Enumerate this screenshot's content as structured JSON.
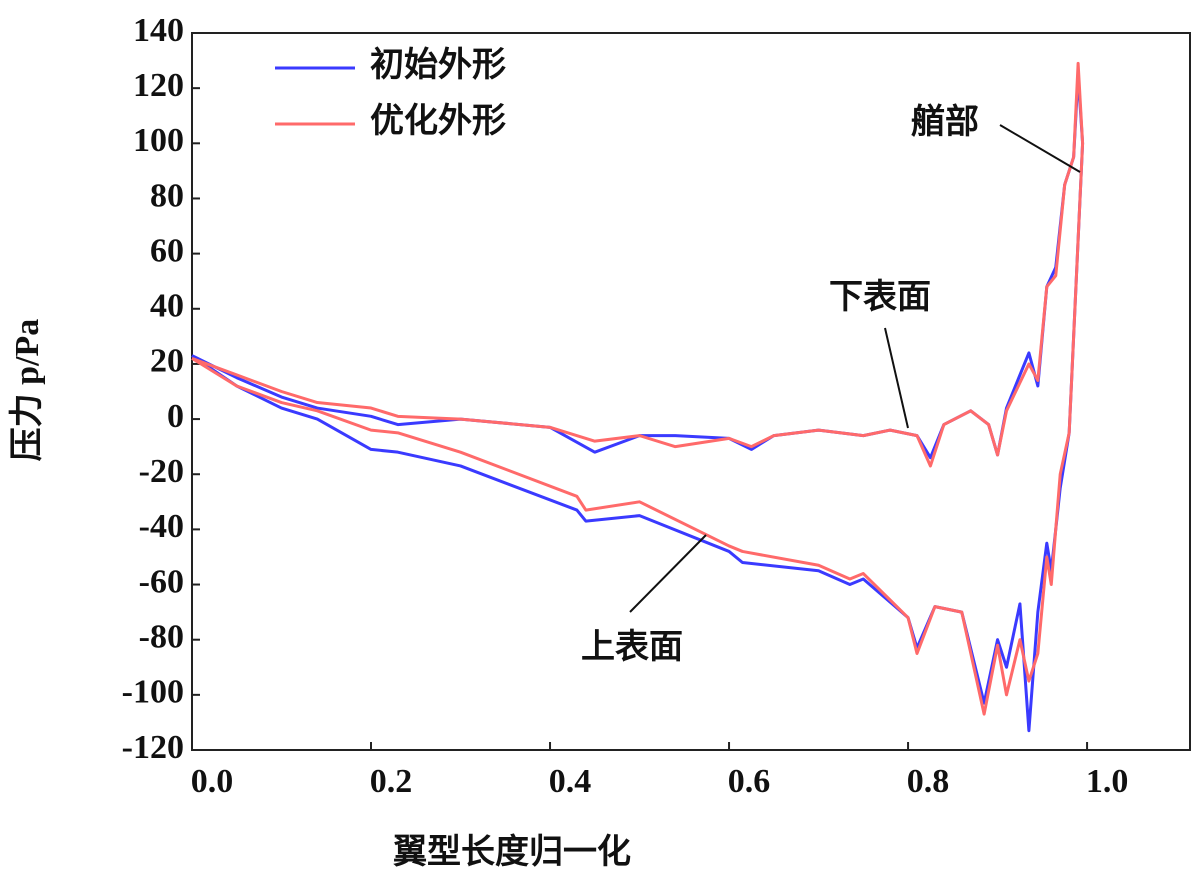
{
  "chart_data": {
    "type": "line",
    "xlabel": "翼型长度归一化",
    "ylabel": "压力 p/Pa",
    "x": [
      0,
      0.05,
      0.1,
      0.14,
      0.2,
      0.23,
      0.3,
      0.4,
      0.45,
      0.5,
      0.54,
      0.6,
      0.625,
      0.65,
      0.7,
      0.75,
      0.78,
      0.81,
      0.825,
      0.84,
      0.87,
      0.89,
      0.9,
      0.91,
      0.935,
      0.945,
      0.955,
      0.965,
      0.975,
      0.985,
      0.99,
      0.995,
      0.98,
      0.97,
      0.96,
      0.955,
      0.945,
      0.935,
      0.925,
      0.91,
      0.9,
      0.885,
      0.86,
      0.83,
      0.81,
      0.8,
      0.75,
      0.735,
      0.7,
      0.615,
      0.6,
      0.5,
      0.44,
      0.43,
      0.3,
      0.23,
      0.2,
      0.14,
      0.1,
      0.05,
      0
    ],
    "series": [
      {
        "name": "初始外形",
        "color": "#3a3aff",
        "values": [
          23,
          15,
          8,
          4,
          1,
          -2,
          0,
          -3,
          -12,
          -6,
          -6,
          -7,
          -11,
          -6,
          -4,
          -6,
          -4,
          -6,
          -14,
          -2,
          3,
          -2,
          -13,
          4,
          24,
          12,
          48,
          55,
          85,
          95,
          125,
          100,
          -5,
          -25,
          -55,
          -45,
          -70,
          -113,
          -67,
          -90,
          -80,
          -103,
          -70,
          -68,
          -83,
          -72,
          -58,
          -60,
          -55,
          -52,
          -48,
          -35,
          -37,
          -33,
          -17,
          -12,
          -11,
          0,
          4,
          12,
          23
        ]
      },
      {
        "name": "优化外形",
        "color": "#ff6a6a",
        "values": [
          22,
          16,
          10,
          6,
          4,
          1,
          0,
          -3,
          -8,
          -6,
          -10,
          -7,
          -10,
          -6,
          -4,
          -6,
          -4,
          -6,
          -17,
          -2,
          3,
          -2,
          -13,
          3,
          20,
          14,
          48,
          52,
          85,
          95,
          129,
          100,
          -5,
          -20,
          -60,
          -50,
          -85,
          -95,
          -80,
          -100,
          -82,
          -107,
          -70,
          -68,
          -85,
          -72,
          -56,
          -58,
          -53,
          -48,
          -46,
          -30,
          -33,
          -28,
          -12,
          -5,
          -4,
          3,
          6,
          12,
          22
        ]
      }
    ],
    "xlim": [
      0,
      1.115
    ],
    "xticks": [
      {
        "value": 0,
        "label": "0.0"
      },
      0.2,
      0.4,
      0.6,
      0.8,
      {
        "value": 1,
        "label": "1.0"
      }
    ],
    "ylim": [
      -120,
      140
    ],
    "yticks": [
      -120,
      -100,
      -80,
      -60,
      -40,
      -20,
      0,
      20,
      40,
      60,
      80,
      100,
      120,
      140
    ],
    "legend": "upper left",
    "annotations": [
      {
        "text": "艏部"
      },
      {
        "text": "下表面"
      },
      {
        "text": "上表面"
      }
    ]
  }
}
